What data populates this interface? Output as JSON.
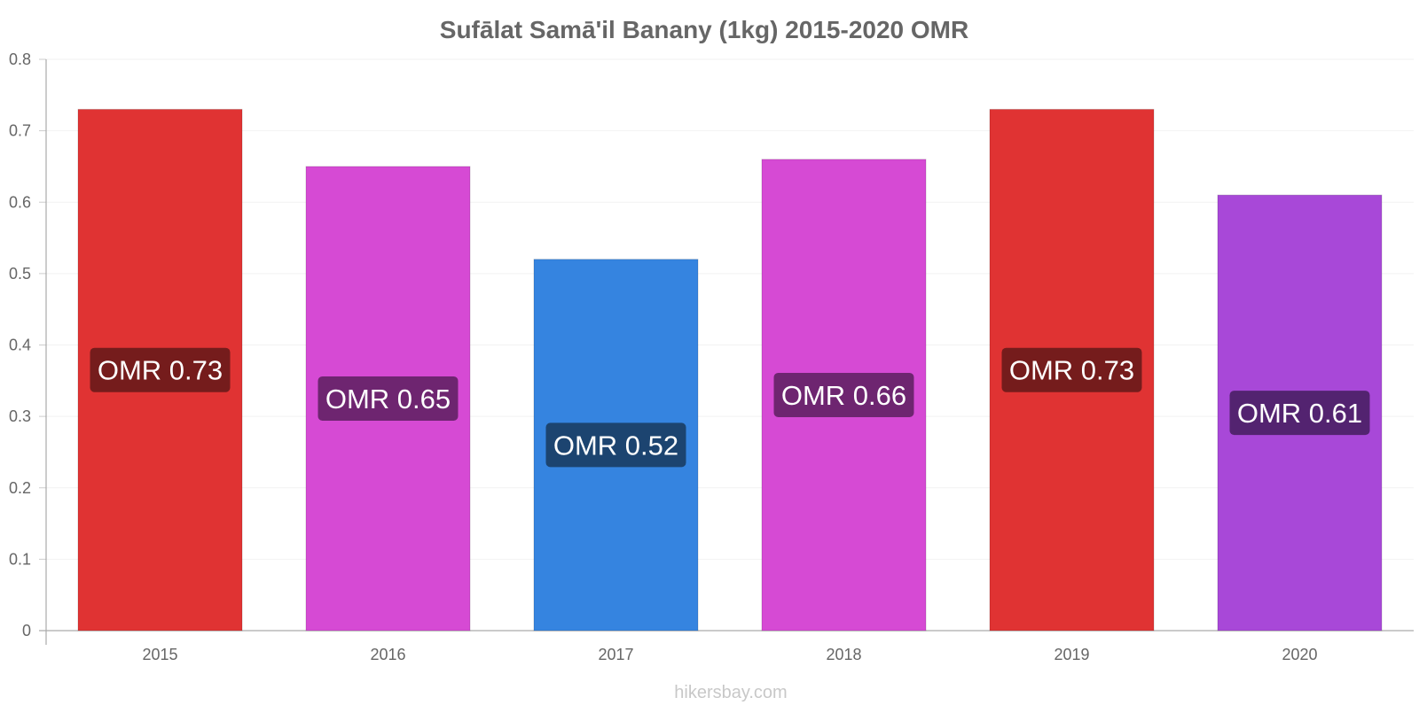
{
  "chart_data": {
    "type": "bar",
    "title": "Sufālat Samā'il Banany (1kg) 2015-2020 OMR",
    "categories": [
      "2015",
      "2016",
      "2017",
      "2018",
      "2019",
      "2020"
    ],
    "values": [
      0.73,
      0.65,
      0.52,
      0.66,
      0.73,
      0.61
    ],
    "data_labels": [
      "OMR 0.73",
      "OMR 0.65",
      "OMR 0.52",
      "OMR 0.66",
      "OMR 0.73",
      "OMR 0.61"
    ],
    "bar_colors": [
      "#e03333",
      "#d64ad4",
      "#3584e0",
      "#d64ad4",
      "#e03333",
      "#a848d8"
    ],
    "label_colors": [
      "#751c1c",
      "#6e2570",
      "#1c4470",
      "#6e2570",
      "#751c1c",
      "#532370"
    ],
    "ylim": [
      0,
      0.8
    ],
    "yticks": [
      "0",
      "0.1",
      "0.2",
      "0.3",
      "0.4",
      "0.5",
      "0.6",
      "0.7",
      "0.8"
    ],
    "xlabel": "",
    "ylabel": "",
    "grid": true,
    "legend": "none"
  },
  "watermark": "hikersbay.com"
}
